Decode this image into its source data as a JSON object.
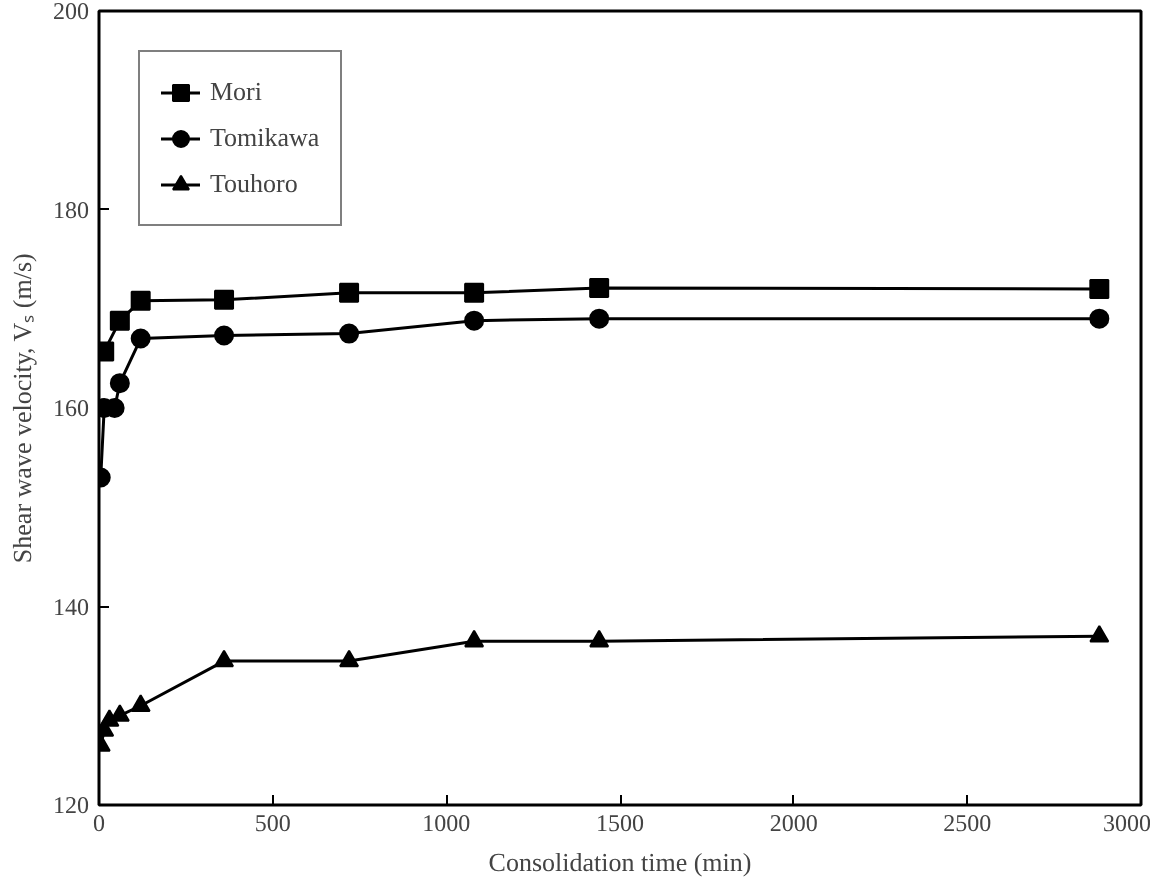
{
  "chart_data": {
    "type": "line",
    "xlabel": "Consolidation time (min)",
    "ylabel": "Shear wave velocity, Vₛ (m/s)",
    "xlim": [
      0,
      3000
    ],
    "xticks": [
      0,
      500,
      1000,
      1500,
      2000,
      2500,
      3000
    ],
    "ylim": [
      120,
      200
    ],
    "yticks": [
      120,
      140,
      160,
      180,
      200
    ],
    "grid": false,
    "legend": "top left",
    "line_style": "solid",
    "series": [
      {
        "name": "Mori",
        "color": "#000000",
        "marker": "square",
        "x": [
          15,
          60,
          120,
          360,
          720,
          1080,
          1440,
          2880
        ],
        "values": [
          165.7,
          168.8,
          170.8,
          170.9,
          171.6,
          171.6,
          172.1,
          172.0
        ]
      },
      {
        "name": "Tomikawa",
        "color": "#000000",
        "marker": "circle",
        "x": [
          5,
          15,
          45,
          60,
          120,
          360,
          720,
          1080,
          1440,
          2880
        ],
        "values": [
          153,
          160,
          160,
          162.5,
          167,
          167.3,
          167.5,
          168.8,
          169,
          169
        ]
      },
      {
        "name": "Touhoro",
        "color": "#000000",
        "marker": "triangle",
        "x": [
          5,
          15,
          30,
          60,
          120,
          360,
          720,
          1080,
          1440,
          2880
        ],
        "values": [
          126,
          127.5,
          128.5,
          129,
          130,
          134.5,
          134.5,
          136.5,
          136.5,
          137
        ]
      }
    ]
  }
}
